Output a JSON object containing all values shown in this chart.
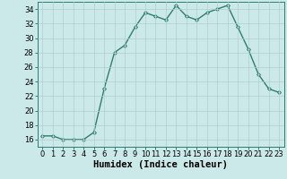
{
  "x": [
    0,
    1,
    2,
    3,
    4,
    5,
    6,
    7,
    8,
    9,
    10,
    11,
    12,
    13,
    14,
    15,
    16,
    17,
    18,
    19,
    20,
    21,
    22,
    23
  ],
  "y": [
    16.5,
    16.5,
    16.0,
    16.0,
    16.0,
    17.0,
    23.0,
    28.0,
    29.0,
    31.5,
    33.5,
    33.0,
    32.5,
    34.5,
    33.0,
    32.5,
    33.5,
    34.0,
    34.5,
    31.5,
    28.5,
    25.0,
    23.0,
    22.5
  ],
  "line_color": "#2e7d6e",
  "marker": "D",
  "marker_size": 2.0,
  "bg_color": "#cce9e9",
  "grid_color": "#b0cece",
  "xlabel": "Humidex (Indice chaleur)",
  "ylim": [
    15,
    35
  ],
  "xlim": [
    -0.5,
    23.5
  ],
  "yticks": [
    16,
    18,
    20,
    22,
    24,
    26,
    28,
    30,
    32,
    34
  ],
  "xticks": [
    0,
    1,
    2,
    3,
    4,
    5,
    6,
    7,
    8,
    9,
    10,
    11,
    12,
    13,
    14,
    15,
    16,
    17,
    18,
    19,
    20,
    21,
    22,
    23
  ],
  "tick_label_fontsize": 6.0,
  "xlabel_fontsize": 7.5,
  "linewidth": 1.0
}
